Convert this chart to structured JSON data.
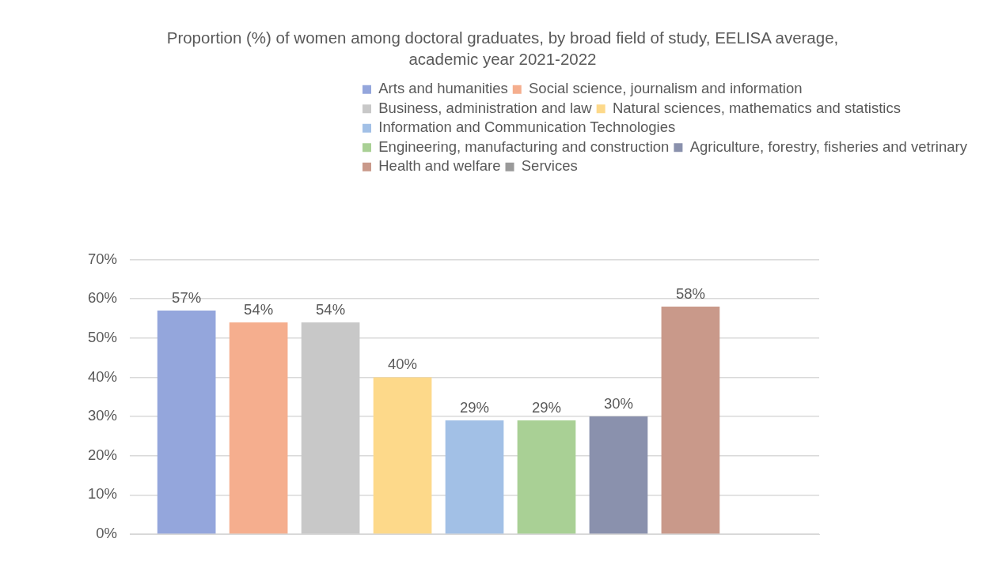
{
  "chart_data": {
    "type": "bar",
    "title": "Proportion (%) of women among doctoral graduates, by broad field of study, EELISA average, academic year 2021-2022",
    "categories": [
      null
    ],
    "series": [
      {
        "name": "Arts and humanities",
        "color": "#94a6dc",
        "values": [
          57
        ],
        "value_labels": [
          "57%"
        ]
      },
      {
        "name": "Social science, journalism and information",
        "color": "#f5ae8e",
        "values": [
          54
        ],
        "value_labels": [
          "54%"
        ]
      },
      {
        "name": "Business, administration and law",
        "color": "#c8c8c8",
        "values": [
          54
        ],
        "value_labels": [
          "54%"
        ]
      },
      {
        "name": "Natural sciences, mathematics and statistics",
        "color": "#fdd98a",
        "values": [
          40
        ],
        "value_labels": [
          "40%"
        ]
      },
      {
        "name": "Information and Communication Technologies",
        "color": "#a2c0e6",
        "values": [
          29
        ],
        "value_labels": [
          "29%"
        ]
      },
      {
        "name": "Engineering, manufacturing and construction",
        "color": "#a9d095",
        "values": [
          29
        ],
        "value_labels": [
          "29%"
        ]
      },
      {
        "name": "Agriculture, forestry, fisheries and vetrinary",
        "color": "#8a91ad",
        "values": [
          30
        ],
        "value_labels": [
          "30%"
        ]
      },
      {
        "name": "Health and welfare",
        "color": "#c9998a",
        "values": [
          58
        ],
        "value_labels": [
          "58%"
        ]
      },
      {
        "name": "Services",
        "color": "#9a9a9a",
        "values": [
          null
        ]
      }
    ],
    "ylim": [
      0,
      70
    ],
    "yticks": [
      {
        "value": 0,
        "label": "0%"
      },
      {
        "value": 10,
        "label": "10%"
      },
      {
        "value": 20,
        "label": "20%"
      },
      {
        "value": 30,
        "label": "30%"
      },
      {
        "value": 40,
        "label": "40%"
      },
      {
        "value": 50,
        "label": "50%"
      },
      {
        "value": 60,
        "label": "60%"
      },
      {
        "value": 70,
        "label": "70%"
      }
    ],
    "grid": "y",
    "legend": "top",
    "tick_labels": "y"
  }
}
